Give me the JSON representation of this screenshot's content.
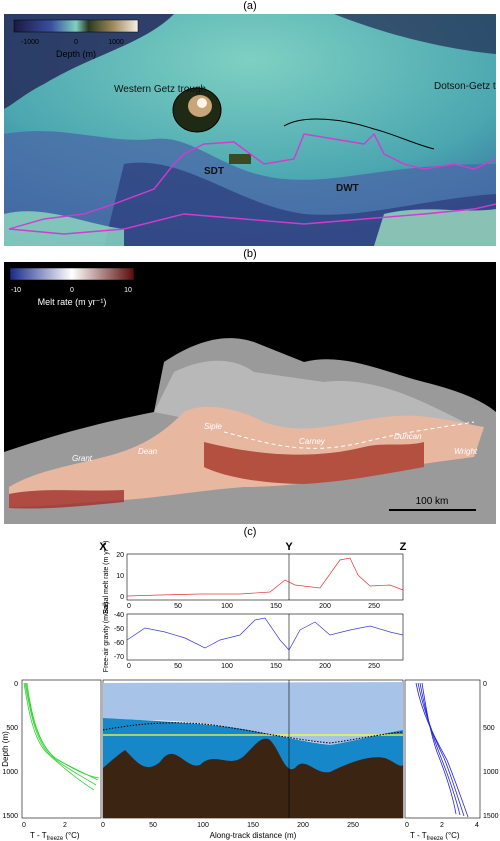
{
  "figure": {
    "panel_a": {
      "label": "(a)",
      "colorbar": {
        "ticks": [
          "-1000",
          "0",
          "1000"
        ],
        "title": "Depth (m)"
      },
      "places": [
        "Western Getz trough",
        "Dotson-Getz trough",
        "SDT",
        "DWT"
      ]
    },
    "panel_b": {
      "label": "(b)",
      "colorbar": {
        "ticks": [
          "-10",
          "0",
          "10"
        ],
        "title": "Melt rate (m yr⁻¹)"
      },
      "places": [
        "Siple",
        "Carney",
        "Duncan",
        "Wright",
        "Grant",
        "Dean"
      ],
      "scalebar": "100 km"
    },
    "panel_c": {
      "label": "(c)",
      "markers": [
        "X",
        "Y",
        "Z"
      ],
      "top": {
        "ylabel": "Basal melt rate (m yr⁻¹)",
        "yticks": [
          "20",
          "10",
          "0"
        ],
        "xticks": [
          "0",
          "50",
          "100",
          "150",
          "200",
          "250"
        ]
      },
      "mid": {
        "ylabel": "Free-air gravity (mGal)",
        "yticks": [
          "-40",
          "-50",
          "-60",
          "-70"
        ],
        "xticks": [
          "0",
          "50",
          "100",
          "150",
          "200",
          "250"
        ]
      },
      "section": {
        "ylabel": "Depth (m)",
        "yticks": [
          "0",
          "500",
          "1000",
          "1500"
        ],
        "xticks": [
          "0",
          "50",
          "100",
          "150",
          "200",
          "250"
        ],
        "xlabel": "Along-track distance (m)",
        "left_xticks": [
          "0",
          "2"
        ],
        "right_xticks": [
          "0",
          "2",
          "4"
        ],
        "tprofile_xlabel": "T - T",
        "tprofile_sub": "freeze",
        "tprofile_unit": "(°C)",
        "right_yticks": [
          "0",
          "500",
          "1000",
          "1500"
        ]
      },
      "colors": {
        "melt": "#e33b3b",
        "gravity": "#3b3bd9",
        "left_profiles": "#35d235",
        "right_profiles": "#2525d8",
        "yellow_line": "#ffff33"
      }
    }
  }
}
